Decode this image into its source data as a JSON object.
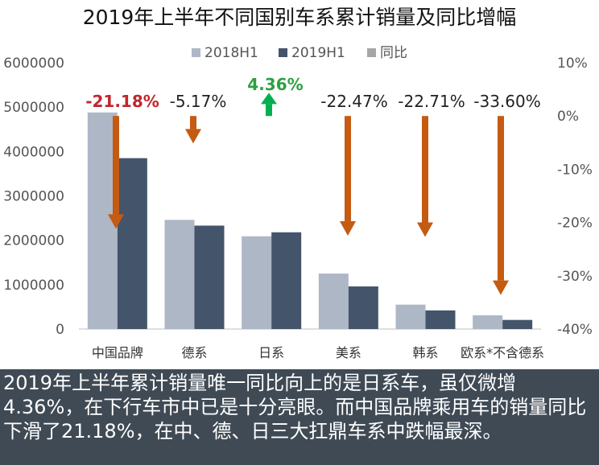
{
  "title": "2019年上半年不同国别车系累计销量及同比增幅",
  "caption": "2019年上半年累计销量唯一同比向上的是日系车，虽仅微增4.36%，在下行车市中已是十分亮眼。而中国品牌乘用车的销量同比下滑了21.18%，在中、德、日三大扛鼎车系中跌幅最深。",
  "colors": {
    "s2018": "#aeb7c6",
    "s2019": "#44546a",
    "yoy_legend": "#a6a6a6",
    "arrow_down": "#c55a11",
    "arrow_up": "#00b050",
    "label_neg_highlight": "#c0272d",
    "label_pos": "#2ea043",
    "label_default": "#222222"
  },
  "chart_data": {
    "type": "bar",
    "categories": [
      "中国品牌",
      "德系",
      "日系",
      "美系",
      "韩系",
      "欧系*不含德系"
    ],
    "series": [
      {
        "name": "2018H1",
        "values": [
          4880000,
          2460000,
          2090000,
          1250000,
          550000,
          310000
        ]
      },
      {
        "name": "2019H1",
        "values": [
          3850000,
          2330000,
          2180000,
          960000,
          420000,
          205000
        ]
      }
    ],
    "yoy": {
      "name": "同比",
      "values": [
        -21.18,
        -5.17,
        4.36,
        -22.47,
        -22.71,
        -33.6
      ],
      "labels": [
        "-21.18%",
        "-5.17%",
        "4.36%",
        "-22.47%",
        "-22.71%",
        "-33.60%"
      ]
    },
    "legend": [
      "2018H1",
      "2019H1",
      "同比"
    ],
    "legend_position": "top",
    "ylim_left": [
      0,
      6000000
    ],
    "yticks_left": [
      "0",
      "1000000",
      "2000000",
      "3000000",
      "4000000",
      "5000000",
      "6000000"
    ],
    "ylim_right": [
      -40,
      10
    ],
    "yticks_right": [
      "10%",
      "0%",
      "-10%",
      "-20%",
      "-30%",
      "-40%"
    ],
    "grid": false
  }
}
